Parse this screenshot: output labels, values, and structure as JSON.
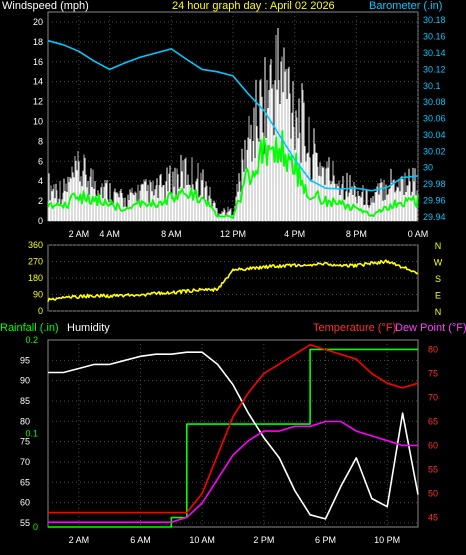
{
  "titles": {
    "wind": "Windspeed (mph)",
    "graph": "24 hour graph day : April 02 2026",
    "barometer": "Barometer (.in)",
    "rainfall": "Rainfall (.in)",
    "humidity": "Humidity",
    "temperature": "Temperature (°F)",
    "dewpoint": "Dew Point (°F)"
  },
  "colors": {
    "wind_gust": "#ffffff",
    "wind_avg": "#00ff00",
    "barometer": "#00c8ff",
    "direction": "#ffff00",
    "rainfall": "#00ff00",
    "humidity": "#ffffff",
    "temperature": "#ff0000",
    "dewpoint": "#ff00ff",
    "grid": "#4a4a4a"
  },
  "chart_data": [
    {
      "type": "line",
      "name": "wind_barometer",
      "x": [
        "00:00",
        "01:00",
        "02:00",
        "03:00",
        "04:00",
        "05:00",
        "06:00",
        "07:00",
        "08:00",
        "09:00",
        "10:00",
        "11:00",
        "12:00",
        "13:00",
        "14:00",
        "15:00",
        "16:00",
        "17:00",
        "18:00",
        "19:00",
        "20:00",
        "21:00",
        "22:00",
        "23:00",
        "24:00"
      ],
      "xticks": [
        "2 AM",
        "4 AM",
        "8 AM",
        "12 PM",
        "4 PM",
        "8 PM",
        "0 AM"
      ],
      "y_left_ticks": [
        0,
        2,
        4,
        6,
        8,
        10,
        12,
        14,
        16,
        18,
        20
      ],
      "y_right_ticks": [
        "29.94",
        "29.96",
        "29.98",
        "30",
        "30.02",
        "30.04",
        "30.06",
        "30.08",
        "30.1",
        "30.12",
        "30.14",
        "30.16",
        "30.18"
      ],
      "ylim_left": [
        0,
        21
      ],
      "ylim_right": [
        29.935,
        30.19
      ],
      "series": [
        {
          "key": "gust",
          "values": [
            3.5,
            3,
            5,
            4,
            3,
            2,
            3,
            3,
            4,
            5,
            4,
            1,
            1,
            8,
            12,
            15,
            12,
            7,
            5,
            4,
            3,
            2,
            4,
            4,
            4
          ]
        },
        {
          "key": "avg",
          "values": [
            2,
            1.5,
            2.5,
            2.2,
            1.8,
            1,
            1.8,
            1.6,
            2.3,
            2.8,
            2.2,
            0.5,
            0.4,
            4.5,
            7,
            7.5,
            5.5,
            2.8,
            2,
            1.8,
            1.2,
            0.6,
            1.5,
            1.8,
            2
          ]
        },
        {
          "key": "barometer",
          "values": [
            30.155,
            30.15,
            30.142,
            30.13,
            30.12,
            30.128,
            30.135,
            30.14,
            30.145,
            30.132,
            30.12,
            30.117,
            30.112,
            30.09,
            30.07,
            30.04,
            30.01,
            29.985,
            29.975,
            29.974,
            29.975,
            29.972,
            29.976,
            29.988,
            29.99
          ]
        }
      ]
    },
    {
      "type": "line",
      "name": "wind_direction",
      "x": [
        "00:00",
        "01:00",
        "02:00",
        "03:00",
        "04:00",
        "05:00",
        "06:00",
        "07:00",
        "08:00",
        "09:00",
        "10:00",
        "11:00",
        "12:00",
        "13:00",
        "14:00",
        "15:00",
        "16:00",
        "17:00",
        "18:00",
        "19:00",
        "20:00",
        "21:00",
        "22:00",
        "23:00",
        "24:00"
      ],
      "y_ticks": [
        0,
        90,
        180,
        270,
        360
      ],
      "compass_labels": [
        "N",
        "W",
        "S",
        "E",
        "N"
      ],
      "ylim": [
        0,
        360
      ],
      "values": [
        60,
        75,
        78,
        85,
        80,
        86,
        88,
        95,
        100,
        108,
        118,
        115,
        225,
        230,
        240,
        245,
        250,
        252,
        255,
        250,
        248,
        260,
        270,
        240,
        210
      ]
    },
    {
      "type": "line",
      "name": "temp_humidity_rain",
      "x": [
        "00:00",
        "01:00",
        "02:00",
        "03:00",
        "04:00",
        "05:00",
        "06:00",
        "07:00",
        "08:00",
        "09:00",
        "10:00",
        "11:00",
        "12:00",
        "13:00",
        "14:00",
        "15:00",
        "16:00",
        "17:00",
        "18:00",
        "19:00",
        "20:00",
        "21:00",
        "22:00",
        "23:00",
        "24:00"
      ],
      "xticks": [
        "2 AM",
        "6 AM",
        "10 AM",
        "2 PM",
        "6 PM",
        "10 PM"
      ],
      "humidity_ticks": [
        55,
        60,
        65,
        70,
        75,
        80,
        85,
        90,
        95
      ],
      "temperature_ticks": [
        45,
        50,
        55,
        60,
        65,
        70,
        75,
        80
      ],
      "rainfall_ticks": [
        "0",
        "0.1",
        "0.2"
      ],
      "ylim_humidity": [
        54,
        100
      ],
      "ylim_temperature": [
        43,
        82
      ],
      "ylim_rainfall": [
        0,
        0.2
      ],
      "series": [
        {
          "key": "humidity",
          "values": [
            92,
            92,
            93,
            94,
            94,
            95,
            96,
            96.5,
            96.5,
            97,
            97,
            94,
            89,
            82,
            76,
            71,
            63,
            57,
            56,
            64,
            71,
            61,
            59,
            82,
            62
          ]
        },
        {
          "key": "temperature",
          "values": [
            46,
            46,
            46,
            46,
            46,
            46,
            46,
            46,
            46,
            46,
            50,
            58,
            66,
            71,
            75,
            77,
            79,
            81,
            80,
            79,
            78,
            75,
            73,
            72,
            73
          ]
        },
        {
          "key": "dewpoint",
          "values": [
            44,
            44,
            44,
            44,
            44,
            44,
            44,
            44,
            44,
            45,
            48,
            53,
            58,
            61,
            63,
            63,
            64,
            64,
            65,
            65,
            63,
            62,
            61,
            60,
            60
          ]
        },
        {
          "key": "rainfall",
          "values": [
            0,
            0,
            0,
            0,
            0,
            0,
            0,
            0,
            0.01,
            0.11,
            0.11,
            0.11,
            0.11,
            0.11,
            0.11,
            0.11,
            0.11,
            0.19,
            0.19,
            0.19,
            0.19,
            0.19,
            0.19,
            0.19,
            0.19
          ]
        }
      ]
    }
  ]
}
